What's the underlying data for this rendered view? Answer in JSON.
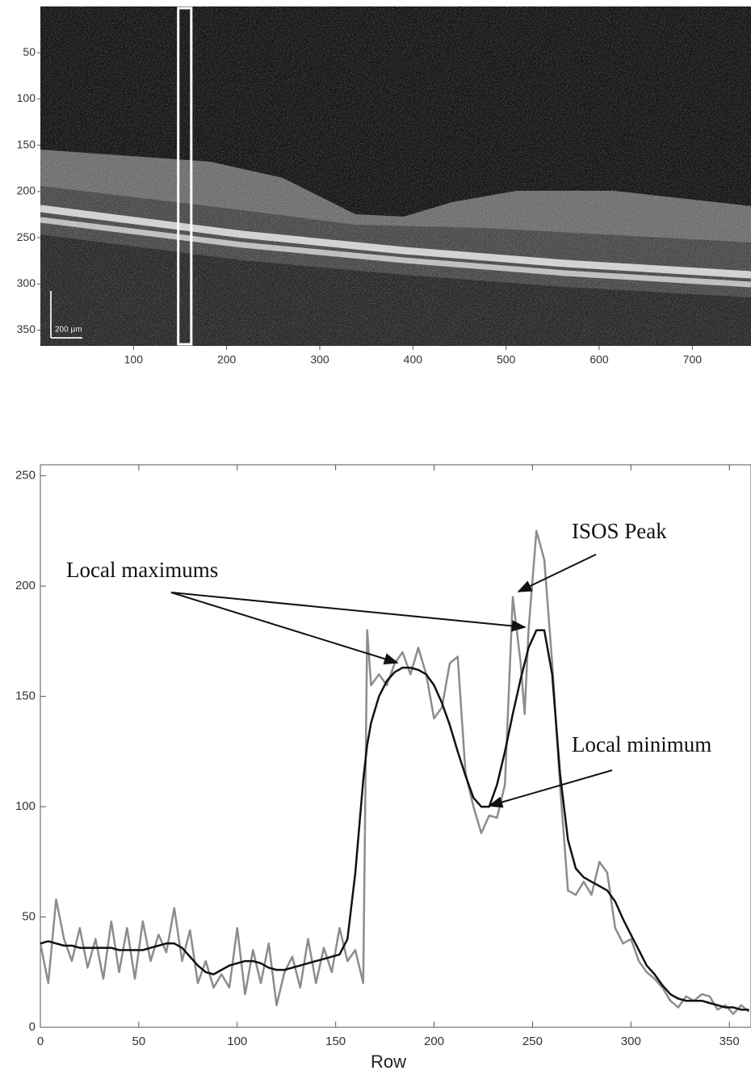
{
  "chart_data": [
    {
      "type": "image",
      "xlim": [
        0,
        763
      ],
      "ylim": [
        367,
        0
      ],
      "xticks": [
        100,
        200,
        300,
        400,
        500,
        600,
        700
      ],
      "yticks": [
        50,
        100,
        150,
        200,
        250,
        300,
        350
      ],
      "highlight": [
        148,
        162
      ],
      "scale_bar_label": "200 µm"
    },
    {
      "type": "line",
      "xlabel": "Row",
      "xlim": [
        0,
        361
      ],
      "ylim": [
        0,
        255
      ],
      "xticks": [
        0,
        50,
        100,
        150,
        200,
        250,
        300,
        350
      ],
      "yticks": [
        0,
        50,
        100,
        150,
        200,
        250
      ],
      "annotations": [
        "Local maximums",
        "ISOS Peak",
        "Local minimum"
      ],
      "x": [
        0,
        4,
        8,
        12,
        16,
        20,
        24,
        28,
        32,
        36,
        40,
        44,
        48,
        52,
        56,
        60,
        64,
        68,
        72,
        76,
        80,
        84,
        88,
        92,
        96,
        100,
        104,
        108,
        112,
        116,
        120,
        124,
        128,
        132,
        136,
        140,
        144,
        148,
        152,
        156,
        160,
        164,
        166,
        168,
        172,
        176,
        180,
        184,
        188,
        192,
        196,
        200,
        204,
        208,
        212,
        216,
        220,
        224,
        228,
        232,
        236,
        240,
        244,
        246,
        248,
        252,
        256,
        260,
        264,
        268,
        272,
        276,
        280,
        284,
        288,
        292,
        296,
        300,
        304,
        308,
        312,
        316,
        320,
        324,
        328,
        332,
        336,
        340,
        344,
        348,
        352,
        356,
        360
      ],
      "series": [
        {
          "color": "#8c8c8c",
          "values": [
            38,
            20,
            58,
            40,
            30,
            45,
            27,
            40,
            22,
            48,
            25,
            45,
            22,
            48,
            30,
            42,
            34,
            54,
            30,
            44,
            20,
            30,
            18,
            24,
            18,
            45,
            15,
            35,
            20,
            38,
            10,
            25,
            32,
            18,
            40,
            20,
            36,
            25,
            45,
            30,
            35,
            20,
            180,
            155,
            160,
            155,
            165,
            170,
            160,
            172,
            160,
            140,
            145,
            165,
            168,
            115,
            100,
            88,
            96,
            95,
            110,
            195,
            165,
            142,
            180,
            225,
            212,
            165,
            110,
            62,
            60,
            66,
            60,
            75,
            70,
            45,
            38,
            40,
            30,
            25,
            22,
            18,
            12,
            9,
            14,
            12,
            15,
            14,
            8,
            10,
            6,
            10,
            7
          ]
        },
        {
          "color": "#111111",
          "values": [
            38,
            39,
            38,
            37,
            37,
            36,
            36,
            36,
            36,
            36,
            35,
            35,
            35,
            35,
            36,
            37,
            38,
            38,
            36,
            32,
            28,
            25,
            24,
            26,
            28,
            29,
            30,
            30,
            29,
            27,
            26,
            26,
            27,
            28,
            29,
            30,
            31,
            32,
            33,
            40,
            70,
            112,
            128,
            138,
            150,
            157,
            161,
            163,
            163,
            162,
            160,
            155,
            147,
            137,
            125,
            114,
            104,
            100,
            100,
            110,
            125,
            142,
            158,
            165,
            172,
            180,
            180,
            160,
            115,
            85,
            72,
            68,
            66,
            64,
            62,
            57,
            49,
            42,
            35,
            28,
            24,
            19,
            15,
            13,
            12,
            12,
            12,
            11,
            10,
            9,
            9,
            8,
            8
          ]
        }
      ]
    }
  ]
}
